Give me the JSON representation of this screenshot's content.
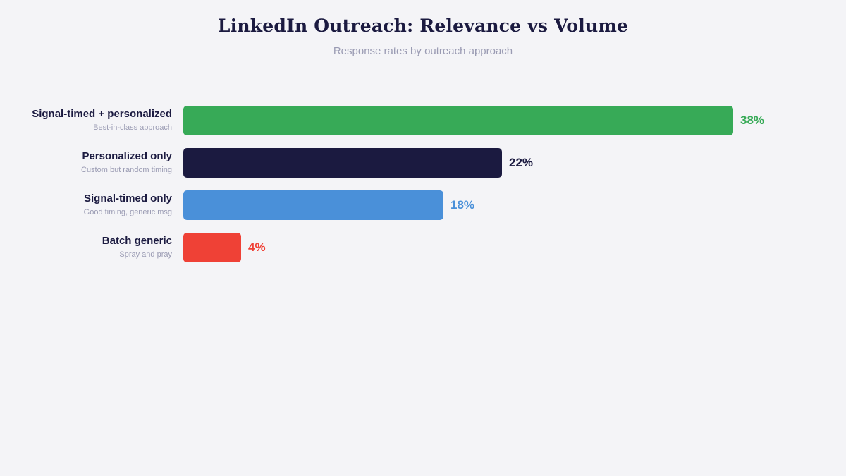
{
  "chart_data": {
    "type": "bar",
    "orientation": "horizontal",
    "title": "LinkedIn Outreach: Relevance vs Volume",
    "subtitle": "Response rates by outreach approach",
    "xlim": [
      0,
      40
    ],
    "grid": false,
    "categories": [
      {
        "label": "Signal-timed + personalized",
        "sublabel": "Best-in-class approach",
        "value": 38,
        "value_label": "38%",
        "color": "#37aa57"
      },
      {
        "label": "Personalized only",
        "sublabel": "Custom but random timing",
        "value": 22,
        "value_label": "22%",
        "color": "#1b1a40"
      },
      {
        "label": "Signal-timed only",
        "sublabel": "Good timing, generic msg",
        "value": 18,
        "value_label": "18%",
        "color": "#4a90d9"
      },
      {
        "label": "Batch generic",
        "sublabel": "Spray and pray",
        "value": 4,
        "value_label": "4%",
        "color": "#ef4136"
      }
    ]
  }
}
